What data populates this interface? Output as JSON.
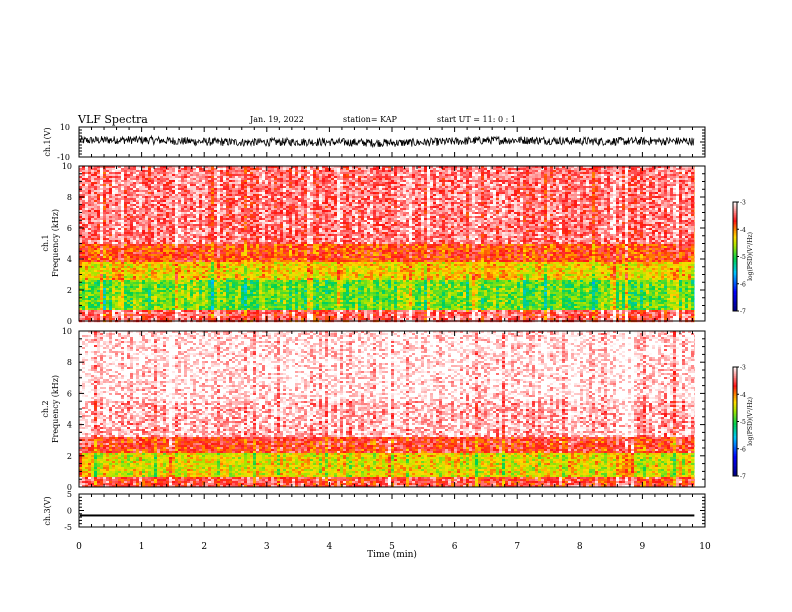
{
  "header": {
    "title": "VLF Spectra",
    "date": "Jan. 19, 2022",
    "station": "station= KAP",
    "start": "start UT =  11: 0  : 1"
  },
  "chart_data": [
    {
      "type": "line",
      "panel": "ch1-waveform",
      "ylabel": "ch.1(V)",
      "ylim": [
        -10,
        10
      ],
      "y_tick_labels": [
        "-10",
        "10"
      ],
      "xlim": [
        0,
        10
      ],
      "data_end_min": 9.83,
      "approx_envelope_V": [
        -2,
        3
      ],
      "color": "#000000"
    },
    {
      "type": "heatmap",
      "panel": "ch1-spectrogram",
      "ylabel": "ch.1\nFrequency (kHz)",
      "ylim": [
        0,
        10
      ],
      "y_tick_labels": [
        "0",
        "2",
        "4",
        "6",
        "8",
        "10"
      ],
      "xlim": [
        0,
        10
      ],
      "data_end_min": 9.83,
      "colorbar": {
        "label": "log(PSD)(V²/Hz)",
        "range": [
          -7,
          -3
        ],
        "tick_labels": [
          "-3",
          "-4",
          "-5",
          "-6",
          "-7"
        ]
      },
      "bands_log_psd": [
        {
          "f_from_kHz": 0.0,
          "f_to_kHz": 0.7,
          "value": -3.5
        },
        {
          "f_from_kHz": 0.7,
          "f_to_kHz": 2.7,
          "value": -4.8
        },
        {
          "f_from_kHz": 2.7,
          "f_to_kHz": 3.8,
          "value": -4.3
        },
        {
          "f_from_kHz": 3.8,
          "f_to_kHz": 5.0,
          "value": -3.8
        },
        {
          "f_from_kHz": 5.0,
          "f_to_kHz": 10.0,
          "value": -3.4
        }
      ]
    },
    {
      "type": "heatmap",
      "panel": "ch2-spectrogram",
      "ylabel": "ch.2\nFrequency (kHz)",
      "ylim": [
        0,
        10
      ],
      "y_tick_labels": [
        "0",
        "2",
        "4",
        "6",
        "8",
        "10"
      ],
      "xlim": [
        0,
        10
      ],
      "data_end_min": 9.83,
      "colorbar": {
        "label": "log(PSD)(V²/Hz)",
        "range": [
          -7,
          -3
        ],
        "tick_labels": [
          "-3",
          "-4",
          "-5",
          "-6",
          "-7"
        ]
      },
      "bands_log_psd": [
        {
          "f_from_kHz": 0.0,
          "f_to_kHz": 0.6,
          "value": -3.6
        },
        {
          "f_from_kHz": 0.6,
          "f_to_kHz": 2.2,
          "value": -4.4
        },
        {
          "f_from_kHz": 2.2,
          "f_to_kHz": 3.2,
          "value": -3.7
        },
        {
          "f_from_kHz": 3.2,
          "f_to_kHz": 5.5,
          "value": -3.2
        },
        {
          "f_from_kHz": 5.5,
          "f_to_kHz": 10.0,
          "value": -3.05
        }
      ]
    },
    {
      "type": "line",
      "panel": "ch3-waveform",
      "ylabel": "ch.3(V)",
      "ylim": [
        -5,
        5
      ],
      "y_tick_labels": [
        "-5",
        "0",
        "5"
      ],
      "xlim": [
        0,
        10
      ],
      "data_end_min": 9.83,
      "approx_level_V": -1.5,
      "approx_thickness_V": 0.6,
      "xlabel": "Time (min)",
      "x_tick_labels": [
        "0",
        "1",
        "2",
        "3",
        "4",
        "5",
        "6",
        "7",
        "8",
        "9",
        "10"
      ],
      "color": "#000000"
    }
  ]
}
